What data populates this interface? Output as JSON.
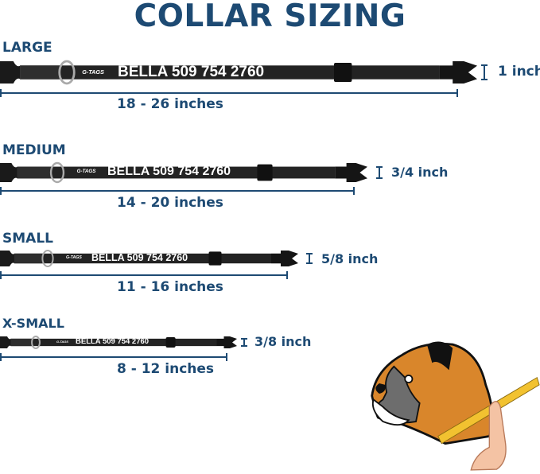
{
  "title": "COLLAR SIZING",
  "sizes": [
    {
      "label": "LARGE",
      "nametag": "BELLA 509 754 2760",
      "logo": "G-TAGS",
      "range": "18 - 26 inches",
      "width": "1 inch"
    },
    {
      "label": "MEDIUM",
      "nametag": "BELLA 509 754 2760",
      "logo": "G-TAGS",
      "range": "14 - 20 inches",
      "width": "3/4 inch"
    },
    {
      "label": "SMALL",
      "nametag": "BELLA 509 754 2760",
      "logo": "G-TAGS",
      "range": "11 - 16 inches",
      "width": "5/8 inch"
    },
    {
      "label": "X-SMALL",
      "nametag": "BELLA 509 754 2760",
      "logo": "G-TAGS",
      "range": "8 - 12 inches",
      "width": "3/8 inch"
    }
  ],
  "colors": {
    "text": "#1d4a73",
    "collar": "#232323",
    "ring": "#a9a9a9",
    "dog_orange": "#d9862b",
    "tape": "#f2c230"
  },
  "illustration": "dog-measuring-icon"
}
